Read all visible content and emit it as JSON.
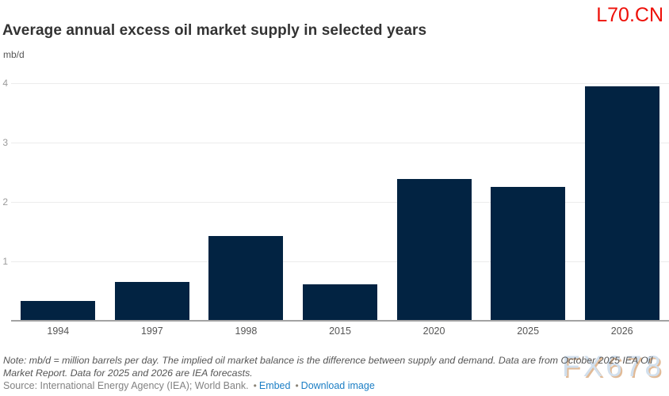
{
  "watermarks": {
    "top_right": "L70.CN",
    "bottom_right": "FX678"
  },
  "header": {
    "title": "Average annual excess oil market supply in selected years",
    "unit_label": "mb/d"
  },
  "chart_data": {
    "type": "bar",
    "title": "Average annual excess oil market supply in selected years",
    "categories": [
      "1994",
      "1997",
      "1998",
      "2015",
      "2020",
      "2025",
      "2026"
    ],
    "values": [
      0.34,
      0.65,
      1.43,
      0.61,
      2.39,
      2.26,
      3.95
    ],
    "xlabel": "",
    "ylabel": "mb/d",
    "ylim": [
      0,
      4
    ],
    "yticks": [
      1,
      2,
      3,
      4
    ],
    "grid": true,
    "legend_position": "none",
    "bar_color": "#022342"
  },
  "footer": {
    "note": "Note: mb/d = million barrels per day. The implied oil market balance is the difference between supply and demand. Data are from October 2025 IEA Oil Market Report. Data for 2025 and 2026 are IEA forecasts.",
    "source_text": "Source: International Energy Agency (IEA); World Bank.",
    "bullet": "•",
    "embed_label": "Embed",
    "download_label": "Download image"
  },
  "colors": {
    "bar": "#022342",
    "gridline": "#ececec",
    "baseline": "#a3a3a3",
    "title_text": "#333333",
    "axis_text": "#555555",
    "ytick_text": "#9b9b9b",
    "note_text": "#555555",
    "source_text": "#828282",
    "link": "#1b7ec5",
    "watermark_red": "#ee1009",
    "watermark_blue": "#c9daeb",
    "watermark_shadow": "#dcae84"
  }
}
